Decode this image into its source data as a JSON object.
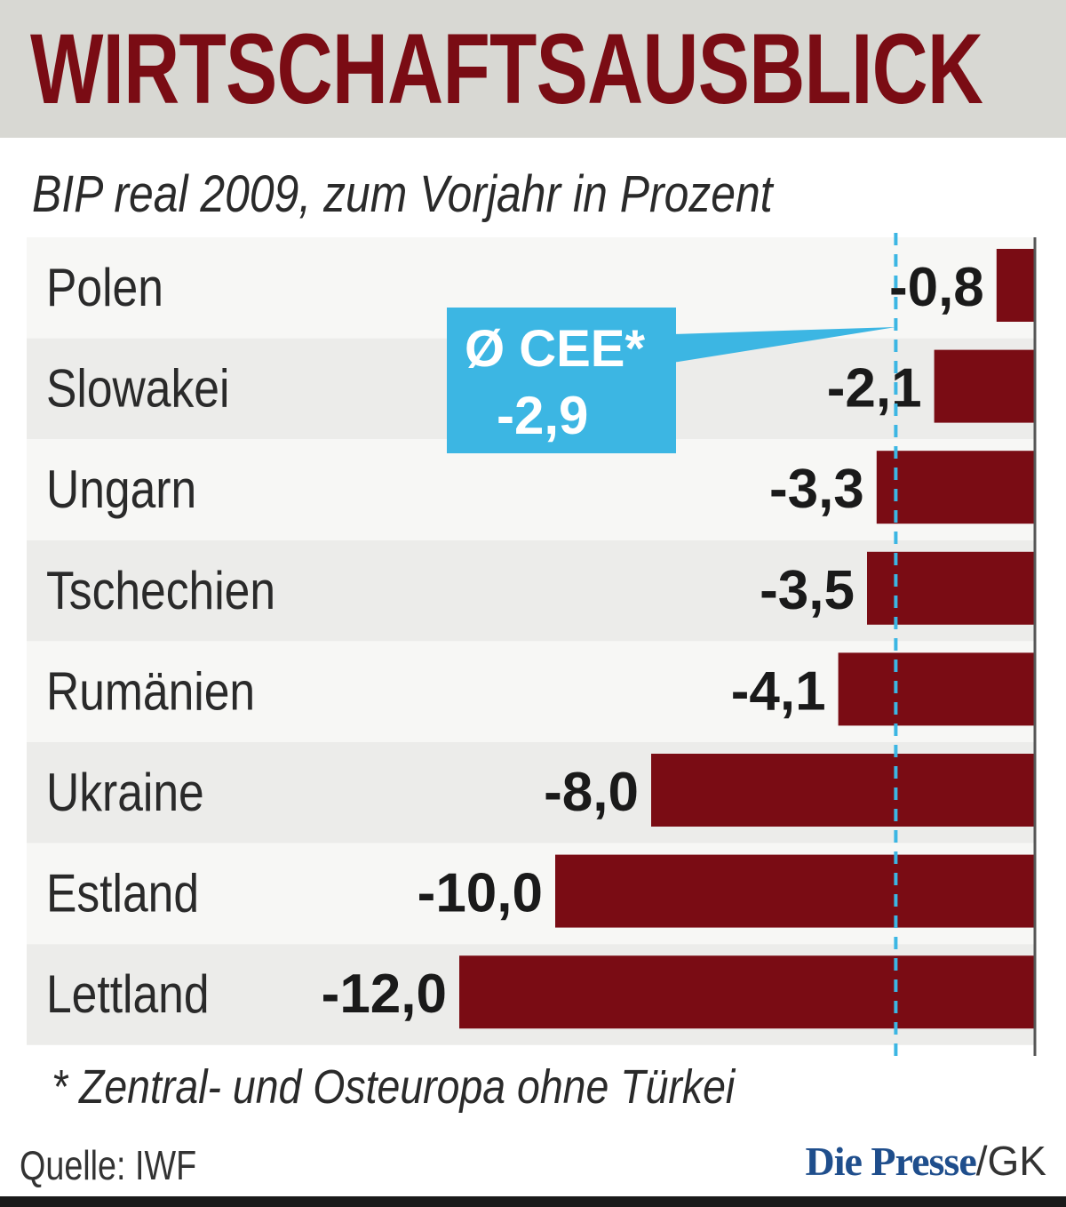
{
  "header": {
    "title": "WIRTSCHAFTSAUSBLICK"
  },
  "chart_data": {
    "type": "bar",
    "orientation": "horizontal",
    "title": "WIRTSCHAFTSAUSBLICK",
    "subtitle": "BIP real 2009, zum Vorjahr in Prozent",
    "categories": [
      "Polen",
      "Slowakei",
      "Ungarn",
      "Tschechien",
      "Rumänien",
      "Ukraine",
      "Estland",
      "Lettland"
    ],
    "values": [
      -0.8,
      -2.1,
      -3.3,
      -3.5,
      -4.1,
      -8.0,
      -10.0,
      -12.0
    ],
    "value_labels": [
      "-0,8",
      "-2,1",
      "-3,3",
      "-3,5",
      "-4,1",
      "-8,0",
      "-10,0",
      "-12,0"
    ],
    "xlim": [
      -12.0,
      0
    ],
    "reference_line": {
      "value": -2.9,
      "label": "Ø CEE*",
      "value_label": "-2,9"
    },
    "bar_color": "#7a0c14",
    "reference_color": "#3cb6e3",
    "row_colors": [
      "#f7f7f5",
      "#ececea"
    ],
    "grid": false,
    "footnote": "* Zentral- und Osteuropa ohne Türkei",
    "source": "Quelle: IWF"
  },
  "credit": {
    "brand": "Die Presse",
    "suffix": "/GK"
  }
}
